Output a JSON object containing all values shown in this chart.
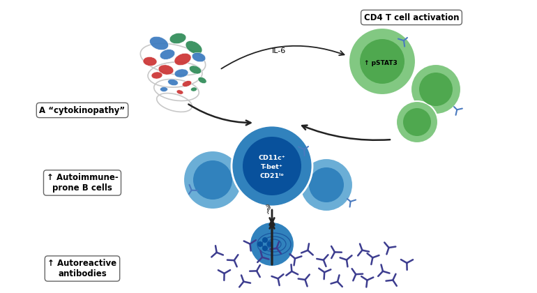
{
  "bg_color": "#ffffff",
  "cytokine_label": "A “cytokinopathy”",
  "t_cell_label": "CD4 T cell activation",
  "pstat3_label": "↑ pSTAT3",
  "il6_label": "IL-6",
  "bcell_label": "↑ Autoimmune-\nprone B cells",
  "antibody_label": "↑ Autoreactive\nantibodies",
  "t_cell_color": "#82c882",
  "t_cell_dark": "#4fa84f",
  "b_cell_color": "#6baed6",
  "b_cell_mid": "#3182bd",
  "b_cell_dark": "#08519c",
  "antibody_color": "#3d3d8f",
  "receptor_color": "#4a7abf",
  "arrow_color": "#222222"
}
